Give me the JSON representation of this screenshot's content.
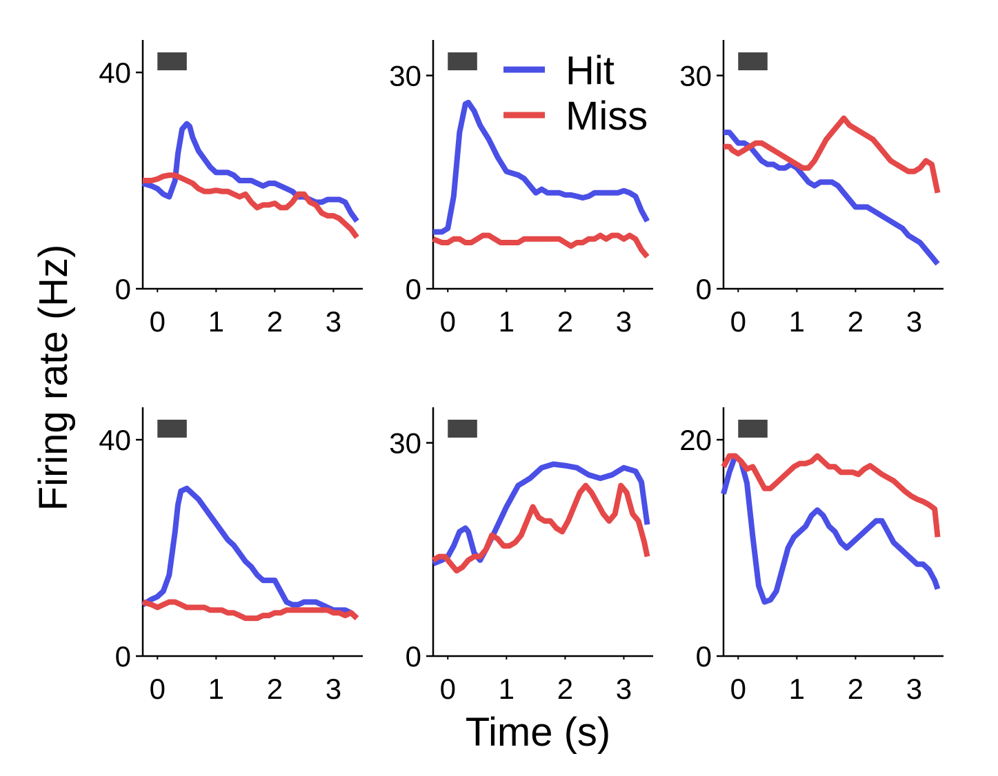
{
  "figure": {
    "ylabel": "Firing rate (Hz)",
    "xlabel": "Time (s)"
  },
  "legend": {
    "placement": "top, inside second panel",
    "items": [
      {
        "label": "Hit",
        "color": "#4a4fe6"
      },
      {
        "label": "Miss",
        "color": "#e54848"
      }
    ]
  },
  "colors": {
    "hit": "#4a4fe6",
    "miss": "#e54848",
    "stimulus_bar": "#444444",
    "axis": "#000000"
  },
  "stimulus_bar": {
    "start_s": 0,
    "end_s": 0.5
  },
  "chart_data": [
    {
      "type": "line",
      "xlim": [
        -0.25,
        3.5
      ],
      "ylim": [
        0,
        46
      ],
      "x_ticks": [
        "0",
        "1",
        "2",
        "3"
      ],
      "y_ticks": [
        "0",
        "40"
      ],
      "y_tick_values": [
        0,
        40
      ],
      "series": [
        {
          "name": "Hit",
          "x": [
            -0.25,
            -0.1,
            0,
            0.1,
            0.2,
            0.3,
            0.35,
            0.42,
            0.5,
            0.55,
            0.6,
            0.7,
            0.8,
            0.9,
            1.0,
            1.1,
            1.2,
            1.3,
            1.4,
            1.5,
            1.6,
            1.7,
            1.8,
            1.9,
            2.0,
            2.1,
            2.2,
            2.3,
            2.4,
            2.5,
            2.6,
            2.7,
            2.8,
            2.9,
            3.0,
            3.1,
            3.2,
            3.3,
            3.4
          ],
          "y": [
            19.5,
            19,
            18.5,
            17.5,
            17,
            20,
            25,
            29.5,
            30.5,
            30,
            28,
            25.5,
            24,
            22.5,
            21.5,
            21.5,
            21.5,
            21,
            20,
            20,
            20,
            19.5,
            19,
            19.5,
            19.5,
            19,
            18.5,
            18,
            17,
            17,
            16.5,
            16,
            16,
            16.5,
            16.5,
            16.5,
            16,
            14,
            12.5
          ]
        },
        {
          "name": "Miss",
          "x": [
            -0.25,
            -0.1,
            0,
            0.1,
            0.2,
            0.3,
            0.4,
            0.5,
            0.6,
            0.7,
            0.8,
            0.9,
            1.0,
            1.1,
            1.2,
            1.3,
            1.4,
            1.5,
            1.6,
            1.7,
            1.8,
            1.9,
            2.0,
            2.1,
            2.2,
            2.3,
            2.4,
            2.5,
            2.6,
            2.7,
            2.8,
            2.9,
            3.0,
            3.1,
            3.2,
            3.3,
            3.4
          ],
          "y": [
            20,
            20,
            20.3,
            20.8,
            21,
            21,
            20.5,
            20,
            19.5,
            18.5,
            18,
            18,
            18.2,
            18,
            18,
            17.5,
            17,
            17.5,
            16,
            15,
            15.5,
            15.5,
            15.8,
            15,
            15,
            16,
            17.5,
            17.5,
            16,
            15.5,
            14,
            13.5,
            13.5,
            13,
            12,
            11,
            9.5
          ]
        }
      ]
    },
    {
      "type": "line",
      "xlim": [
        -0.25,
        3.5
      ],
      "ylim": [
        0,
        35
      ],
      "x_ticks": [
        "0",
        "1",
        "2",
        "3"
      ],
      "y_ticks": [
        "0",
        "30"
      ],
      "y_tick_values": [
        0,
        30
      ],
      "series": [
        {
          "name": "Hit",
          "x": [
            -0.25,
            -0.1,
            0,
            0.1,
            0.2,
            0.3,
            0.35,
            0.45,
            0.55,
            0.7,
            0.85,
            1.0,
            1.2,
            1.3,
            1.4,
            1.5,
            1.6,
            1.7,
            1.8,
            1.9,
            2.0,
            2.1,
            2.2,
            2.3,
            2.4,
            2.5,
            2.6,
            2.7,
            2.8,
            2.9,
            3.0,
            3.1,
            3.2,
            3.3,
            3.4
          ],
          "y": [
            8,
            8,
            8.5,
            13,
            22,
            26,
            26.2,
            25,
            23,
            21,
            18.5,
            16.5,
            16,
            15.5,
            14.5,
            13.5,
            14,
            13.5,
            13.5,
            13.5,
            13.2,
            13.2,
            13,
            12.8,
            13,
            13.5,
            13.5,
            13.5,
            13.5,
            13.5,
            13.8,
            13.5,
            13,
            11,
            9.5
          ]
        },
        {
          "name": "Miss",
          "x": [
            -0.25,
            -0.1,
            0,
            0.1,
            0.2,
            0.3,
            0.4,
            0.5,
            0.6,
            0.7,
            0.8,
            0.9,
            1.0,
            1.1,
            1.2,
            1.3,
            1.4,
            1.5,
            1.6,
            1.7,
            1.8,
            1.9,
            2.0,
            2.1,
            2.2,
            2.3,
            2.4,
            2.5,
            2.6,
            2.7,
            2.8,
            2.9,
            3.0,
            3.1,
            3.2,
            3.3,
            3.4
          ],
          "y": [
            7,
            6.5,
            6.5,
            7,
            7,
            6.5,
            6.5,
            7,
            7.5,
            7.5,
            7,
            6.5,
            6.5,
            6.5,
            6.5,
            7,
            7,
            7,
            7,
            7,
            7,
            7,
            6.5,
            6,
            6.5,
            6.5,
            7,
            7,
            7.5,
            7,
            7.5,
            7.5,
            7,
            7.5,
            7,
            5.5,
            4.5
          ]
        }
      ]
    },
    {
      "type": "line",
      "xlim": [
        -0.25,
        3.5
      ],
      "ylim": [
        0,
        35
      ],
      "x_ticks": [
        "0",
        "1",
        "2",
        "3"
      ],
      "y_ticks": [
        "0",
        "30"
      ],
      "y_tick_values": [
        0,
        30
      ],
      "series": [
        {
          "name": "Hit",
          "x": [
            -0.25,
            -0.15,
            -0.1,
            0,
            0.1,
            0.2,
            0.3,
            0.4,
            0.5,
            0.6,
            0.7,
            0.8,
            0.9,
            1.0,
            1.1,
            1.2,
            1.3,
            1.4,
            1.5,
            1.6,
            1.7,
            1.8,
            1.9,
            2.0,
            2.1,
            2.2,
            2.3,
            2.4,
            2.5,
            2.6,
            2.7,
            2.8,
            2.9,
            3.0,
            3.1,
            3.2,
            3.3,
            3.4
          ],
          "y": [
            22,
            22,
            21.5,
            20.5,
            20.5,
            20,
            19,
            18,
            17.5,
            17.5,
            17,
            17,
            17.5,
            17,
            16,
            15,
            14.5,
            15,
            15,
            15,
            14.5,
            13.5,
            12.5,
            11.5,
            11.5,
            11.5,
            11,
            10.5,
            10,
            9.5,
            9,
            8.5,
            7.5,
            7,
            6.5,
            5.5,
            4.5,
            3.5
          ]
        },
        {
          "name": "Miss",
          "x": [
            -0.25,
            -0.15,
            -0.1,
            0,
            0.1,
            0.2,
            0.3,
            0.4,
            0.5,
            0.6,
            0.7,
            0.8,
            0.9,
            1.0,
            1.1,
            1.2,
            1.3,
            1.4,
            1.5,
            1.6,
            1.7,
            1.8,
            1.9,
            2.0,
            2.1,
            2.2,
            2.3,
            2.4,
            2.5,
            2.6,
            2.7,
            2.8,
            2.9,
            3.0,
            3.1,
            3.2,
            3.3,
            3.4
          ],
          "y": [
            20,
            20,
            19.5,
            19,
            19.5,
            20,
            20.5,
            20.5,
            20,
            19.5,
            19,
            18.5,
            18,
            17.5,
            17,
            17,
            18,
            19.5,
            21,
            22,
            23,
            24,
            23,
            22.5,
            22,
            21.5,
            21,
            20,
            19,
            18,
            17.5,
            17,
            16.5,
            16.5,
            17,
            18,
            17.5,
            13.5
          ]
        }
      ]
    },
    {
      "type": "line",
      "xlim": [
        -0.25,
        3.5
      ],
      "ylim": [
        0,
        46
      ],
      "x_ticks": [
        "0",
        "1",
        "2",
        "3"
      ],
      "y_ticks": [
        "0",
        "40"
      ],
      "y_tick_values": [
        0,
        40
      ],
      "series": [
        {
          "name": "Hit",
          "x": [
            -0.25,
            -0.1,
            0,
            0.1,
            0.2,
            0.3,
            0.35,
            0.4,
            0.5,
            0.6,
            0.7,
            0.8,
            0.9,
            1.0,
            1.1,
            1.2,
            1.3,
            1.4,
            1.5,
            1.6,
            1.7,
            1.8,
            1.9,
            2.0,
            2.1,
            2.2,
            2.3,
            2.4,
            2.5,
            2.6,
            2.7,
            2.8,
            2.9,
            3.0,
            3.1,
            3.2,
            3.3,
            3.4
          ],
          "y": [
            9.5,
            10.5,
            11,
            12,
            15,
            23,
            28,
            30.5,
            31,
            30,
            29,
            27.5,
            26,
            24.5,
            23,
            21.5,
            20.5,
            19,
            17.5,
            16.5,
            15,
            14,
            14,
            14,
            12,
            10,
            9.5,
            9.5,
            10,
            10,
            10,
            9.5,
            9,
            8.5,
            8.5,
            8.5,
            8,
            7
          ]
        },
        {
          "name": "Miss",
          "x": [
            -0.25,
            -0.1,
            0,
            0.1,
            0.2,
            0.3,
            0.4,
            0.5,
            0.6,
            0.7,
            0.8,
            0.9,
            1.0,
            1.1,
            1.2,
            1.3,
            1.4,
            1.5,
            1.6,
            1.7,
            1.8,
            1.9,
            2.0,
            2.1,
            2.2,
            2.3,
            2.4,
            2.5,
            2.6,
            2.7,
            2.8,
            2.9,
            3.0,
            3.1,
            3.2,
            3.3,
            3.4
          ],
          "y": [
            10,
            9.5,
            9,
            9.5,
            10,
            10,
            9.5,
            9,
            9,
            9,
            9,
            8.5,
            8.5,
            8.5,
            8,
            8,
            7.5,
            7,
            7,
            7,
            7.5,
            7.5,
            8,
            8,
            8.5,
            8.5,
            8.5,
            8.5,
            8.5,
            8.5,
            8.5,
            8.5,
            8,
            8,
            7.5,
            8,
            7
          ]
        }
      ]
    },
    {
      "type": "line",
      "xlim": [
        -0.25,
        3.5
      ],
      "ylim": [
        0,
        35
      ],
      "x_ticks": [
        "0",
        "1",
        "2",
        "3"
      ],
      "y_ticks": [
        "0",
        "30"
      ],
      "y_tick_values": [
        0,
        30
      ],
      "series": [
        {
          "name": "Hit",
          "x": [
            -0.25,
            -0.1,
            0,
            0.1,
            0.2,
            0.3,
            0.35,
            0.4,
            0.45,
            0.55,
            0.65,
            0.8,
            1.0,
            1.2,
            1.4,
            1.6,
            1.8,
            2.0,
            2.2,
            2.4,
            2.6,
            2.8,
            3.0,
            3.2,
            3.3,
            3.4
          ],
          "y": [
            13,
            13.5,
            14,
            15.5,
            17.5,
            18,
            17.5,
            16,
            14.5,
            13.5,
            15,
            17.5,
            21,
            24,
            25,
            26.5,
            27,
            26.8,
            26.5,
            25.5,
            25,
            25.5,
            26.5,
            26,
            24.5,
            18.5
          ]
        },
        {
          "name": "Miss",
          "x": [
            -0.25,
            -0.15,
            -0.05,
            0.05,
            0.15,
            0.25,
            0.35,
            0.45,
            0.55,
            0.65,
            0.75,
            0.85,
            0.95,
            1.05,
            1.15,
            1.25,
            1.35,
            1.45,
            1.55,
            1.65,
            1.75,
            1.85,
            1.95,
            2.05,
            2.15,
            2.25,
            2.35,
            2.45,
            2.55,
            2.65,
            2.75,
            2.85,
            2.95,
            3.05,
            3.15,
            3.25,
            3.35,
            3.4
          ],
          "y": [
            13.5,
            14,
            14,
            13,
            12,
            12.5,
            13.5,
            14,
            14,
            15,
            17,
            16.5,
            15.5,
            15.5,
            16,
            17,
            19,
            21,
            19.5,
            19,
            19,
            18,
            17.5,
            19,
            21,
            23,
            24,
            23,
            21.5,
            20,
            19,
            20,
            24,
            23,
            20,
            19,
            16,
            14
          ]
        }
      ]
    },
    {
      "type": "line",
      "xlim": [
        -0.25,
        3.5
      ],
      "ylim": [
        0,
        23
      ],
      "x_ticks": [
        "0",
        "1",
        "2",
        "3"
      ],
      "y_ticks": [
        "0",
        "20"
      ],
      "y_tick_values": [
        0,
        20
      ],
      "series": [
        {
          "name": "Hit",
          "x": [
            -0.25,
            -0.15,
            -0.05,
            0.05,
            0.15,
            0.25,
            0.35,
            0.45,
            0.55,
            0.65,
            0.75,
            0.85,
            0.95,
            1.05,
            1.15,
            1.25,
            1.35,
            1.45,
            1.55,
            1.65,
            1.75,
            1.85,
            1.95,
            2.05,
            2.15,
            2.25,
            2.35,
            2.45,
            2.55,
            2.65,
            2.75,
            2.85,
            2.95,
            3.05,
            3.15,
            3.25,
            3.35,
            3.4
          ],
          "y": [
            15,
            17,
            18.5,
            18,
            16,
            11,
            6.5,
            5,
            5.2,
            6,
            8,
            10,
            11,
            11.5,
            12,
            13,
            13.5,
            13,
            12,
            11.5,
            10.5,
            10,
            10.5,
            11,
            11.5,
            12,
            12.5,
            12.5,
            11.5,
            10.5,
            10,
            9.5,
            9,
            8.5,
            8.5,
            8,
            7,
            6.2
          ]
        },
        {
          "name": "Miss",
          "x": [
            -0.25,
            -0.15,
            -0.05,
            0.05,
            0.15,
            0.25,
            0.35,
            0.45,
            0.55,
            0.65,
            0.75,
            0.85,
            0.95,
            1.05,
            1.15,
            1.25,
            1.35,
            1.45,
            1.55,
            1.65,
            1.75,
            1.85,
            1.95,
            2.05,
            2.15,
            2.25,
            2.35,
            2.45,
            2.55,
            2.65,
            2.75,
            2.85,
            2.95,
            3.05,
            3.15,
            3.25,
            3.35,
            3.4
          ],
          "y": [
            17.5,
            18.5,
            18.5,
            18,
            17.3,
            17.5,
            16.5,
            15.5,
            15.5,
            16,
            16.5,
            17,
            17.5,
            17.8,
            17.8,
            18,
            18.5,
            18,
            17.5,
            17.5,
            17,
            17,
            17,
            16.8,
            17.3,
            17.6,
            17.2,
            16.8,
            16.5,
            16.2,
            15.7,
            15.2,
            14.8,
            14.5,
            14.3,
            14,
            13.6,
            11
          ]
        }
      ]
    }
  ]
}
